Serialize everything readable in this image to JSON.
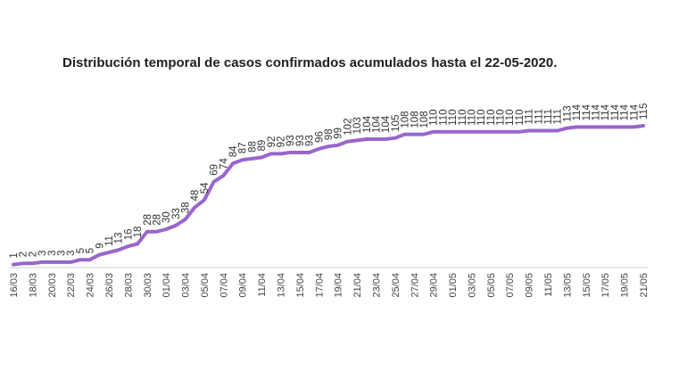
{
  "chart_data": {
    "type": "line",
    "title": "Distribución temporal de casos confirmados acumulados hasta el 22-05-2020.",
    "xlabel": "",
    "ylabel": "",
    "ylim": [
      0,
      115
    ],
    "grid": false,
    "legend": "none",
    "color": "#9966cc",
    "x_tick_labels": [
      "16/03",
      "18/03",
      "20/03",
      "22/03",
      "24/03",
      "26/03",
      "28/03",
      "30/03",
      "01/04",
      "03/04",
      "05/04",
      "07/04",
      "09/04",
      "11/04",
      "13/04",
      "15/04",
      "17/04",
      "19/04",
      "21/04",
      "23/04",
      "25/04",
      "27/04",
      "29/04",
      "01/05",
      "03/05",
      "05/05",
      "07/05",
      "09/05",
      "11/05",
      "13/05",
      "15/05",
      "17/05",
      "19/05",
      "21/05"
    ],
    "series": [
      {
        "values": [
          1,
          2,
          2,
          3,
          3,
          3,
          3,
          5,
          5,
          9,
          11,
          13,
          16,
          18,
          28,
          28,
          30,
          33,
          38,
          48,
          54,
          69,
          74,
          84,
          87,
          88,
          89,
          92,
          92,
          93,
          93,
          93,
          96,
          98,
          99,
          102,
          103,
          104,
          104,
          104,
          105,
          108,
          108,
          108,
          110,
          110,
          110,
          110,
          110,
          110,
          110,
          110,
          110,
          110,
          111,
          111,
          111,
          111,
          113,
          114,
          114,
          114,
          114,
          114,
          114,
          114,
          115
        ]
      }
    ]
  }
}
